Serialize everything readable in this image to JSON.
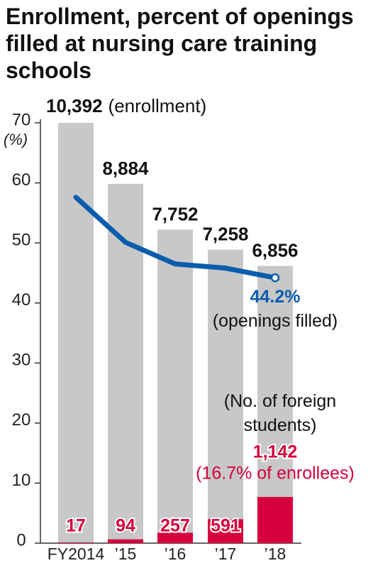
{
  "chart_data": {
    "type": "combo",
    "title": "Enrollment, percent of openings filled at nursing care training schools",
    "y_label": "(%)",
    "categories": [
      "FY2014",
      "’15",
      "’16",
      "’17",
      "’18"
    ],
    "ylim": [
      0,
      70
    ],
    "yticks": [
      0,
      10,
      20,
      30,
      40,
      50,
      60,
      70
    ],
    "series": [
      {
        "name": "(enrollment)",
        "kind": "bar",
        "color": "#c8c8c8",
        "values": [
          10392,
          8884,
          7752,
          7258,
          6856
        ],
        "value_labels": [
          "10,392",
          "8,884",
          "7,752",
          "7,258",
          "6,856"
        ]
      },
      {
        "name": "(No. of foreign students)",
        "kind": "bar",
        "color": "#d6003c",
        "values": [
          17,
          94,
          257,
          591,
          1142
        ],
        "value_labels": [
          "17",
          "94",
          "257",
          "591",
          "1,142"
        ]
      },
      {
        "name": "(openings filled)",
        "kind": "line",
        "color": "#0a5cad",
        "axis": "y",
        "values": [
          57.6,
          50.1,
          46.5,
          45.8,
          44.2
        ],
        "value_labels": [
          null,
          null,
          null,
          null,
          "44.2%"
        ]
      }
    ],
    "annotations": [
      "(16.7% of enrollees)"
    ]
  }
}
